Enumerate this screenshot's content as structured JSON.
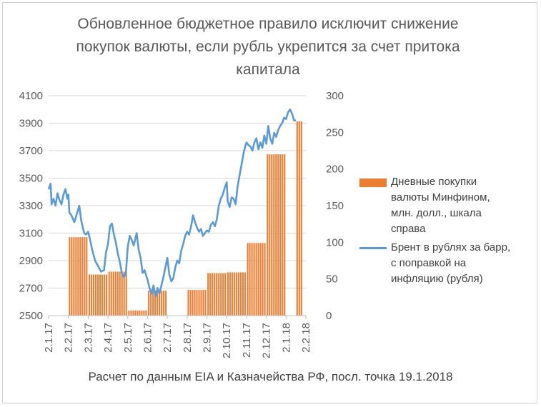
{
  "colors": {
    "bars": "#ED7D31",
    "line": "#5B9BD5",
    "text": "#595959",
    "grid": "#d9d9d9"
  },
  "chart_data": {
    "type": "bar",
    "title_lines": [
      "Обновленное бюджетное правило исключит снижение",
      "покупок валюты, если рубль укрепится за счет притока",
      "капитала"
    ],
    "footnote": "Расчет по данным EIA и Казначейства РФ, посл. точка 19.1.2018",
    "x_tick_labels": [
      "2.1.17",
      "2.2.17",
      "2.3.17",
      "2.4.17",
      "2.5.17",
      "2.6.17",
      "2.7.17",
      "2.8.17",
      "2.9.17",
      "2.10.17",
      "2.11.17",
      "2.12.17",
      "2.1.18",
      "2.2.18"
    ],
    "left_axis": {
      "ticks": [
        2500,
        2700,
        2900,
        3100,
        3300,
        3500,
        3700,
        3900,
        4100
      ],
      "ylim": [
        2500,
        4100
      ]
    },
    "right_axis": {
      "ticks": [
        0,
        50,
        100,
        150,
        200,
        250,
        300
      ],
      "ylim": [
        0,
        300
      ]
    },
    "legend_position": "right",
    "series": [
      {
        "name_lines": [
          "Дневные покупки",
          "валюты Минфином,",
          "млн. долл., шкала",
          "справа"
        ],
        "type": "bar",
        "axis": "right",
        "segments": [
          {
            "from_month": 0.0,
            "to_month": 1.0,
            "value": 0
          },
          {
            "from_month": 1.0,
            "to_month": 2.0,
            "value": 107
          },
          {
            "from_month": 2.0,
            "to_month": 3.0,
            "value": 56
          },
          {
            "from_month": 3.0,
            "to_month": 4.0,
            "value": 60
          },
          {
            "from_month": 4.0,
            "to_month": 5.0,
            "value": 7
          },
          {
            "from_month": 5.0,
            "to_month": 6.0,
            "value": 34
          },
          {
            "from_month": 6.0,
            "to_month": 7.0,
            "value": 0
          },
          {
            "from_month": 7.0,
            "to_month": 8.0,
            "value": 35
          },
          {
            "from_month": 8.0,
            "to_month": 9.0,
            "value": 58
          },
          {
            "from_month": 9.0,
            "to_month": 10.0,
            "value": 59
          },
          {
            "from_month": 10.0,
            "to_month": 11.0,
            "value": 99
          },
          {
            "from_month": 11.0,
            "to_month": 12.0,
            "value": 220
          },
          {
            "from_month": 12.0,
            "to_month": 12.5,
            "value": 0
          },
          {
            "from_month": 12.5,
            "to_month": 12.85,
            "value": 265
          }
        ]
      },
      {
        "name_lines": [
          "Брент в рублях за барр,",
          "с поправкой на",
          "инфляцию (рубля)"
        ],
        "type": "line",
        "axis": "left",
        "points": [
          [
            0.0,
            3420
          ],
          [
            0.1,
            3460
          ],
          [
            0.15,
            3310
          ],
          [
            0.25,
            3350
          ],
          [
            0.35,
            3300
          ],
          [
            0.45,
            3390
          ],
          [
            0.55,
            3340
          ],
          [
            0.65,
            3310
          ],
          [
            0.75,
            3380
          ],
          [
            0.85,
            3420
          ],
          [
            0.95,
            3350
          ],
          [
            1.0,
            3380
          ],
          [
            1.05,
            3250
          ],
          [
            1.15,
            3230
          ],
          [
            1.3,
            3180
          ],
          [
            1.45,
            3250
          ],
          [
            1.55,
            3300
          ],
          [
            1.65,
            3190
          ],
          [
            1.8,
            3100
          ],
          [
            1.9,
            3090
          ],
          [
            2.0,
            3110
          ],
          [
            2.1,
            3050
          ],
          [
            2.2,
            2980
          ],
          [
            2.35,
            2900
          ],
          [
            2.5,
            2860
          ],
          [
            2.65,
            2820
          ],
          [
            2.8,
            2830
          ],
          [
            2.9,
            2960
          ],
          [
            3.0,
            3020
          ],
          [
            3.1,
            3150
          ],
          [
            3.2,
            3170
          ],
          [
            3.3,
            3090
          ],
          [
            3.4,
            3030
          ],
          [
            3.5,
            2950
          ],
          [
            3.6,
            2890
          ],
          [
            3.7,
            2810
          ],
          [
            3.8,
            2780
          ],
          [
            3.9,
            2800
          ],
          [
            4.0,
            3000
          ],
          [
            4.1,
            3080
          ],
          [
            4.2,
            3050
          ],
          [
            4.3,
            3010
          ],
          [
            4.45,
            3100
          ],
          [
            4.55,
            2980
          ],
          [
            4.65,
            2920
          ],
          [
            4.75,
            2810
          ],
          [
            4.85,
            2830
          ],
          [
            5.0,
            2760
          ],
          [
            5.1,
            2700
          ],
          [
            5.2,
            2660
          ],
          [
            5.3,
            2720
          ],
          [
            5.4,
            2640
          ],
          [
            5.5,
            2700
          ],
          [
            5.6,
            2660
          ],
          [
            5.7,
            2720
          ],
          [
            5.8,
            2780
          ],
          [
            5.9,
            2850
          ],
          [
            6.0,
            2920
          ],
          [
            6.1,
            2800
          ],
          [
            6.2,
            2750
          ],
          [
            6.3,
            2770
          ],
          [
            6.4,
            2850
          ],
          [
            6.5,
            2900
          ],
          [
            6.6,
            2880
          ],
          [
            6.7,
            2970
          ],
          [
            6.8,
            3020
          ],
          [
            6.9,
            3080
          ],
          [
            7.0,
            3110
          ],
          [
            7.1,
            3090
          ],
          [
            7.2,
            3150
          ],
          [
            7.3,
            3230
          ],
          [
            7.4,
            3180
          ],
          [
            7.5,
            3140
          ],
          [
            7.6,
            3110
          ],
          [
            7.7,
            3130
          ],
          [
            7.8,
            3080
          ],
          [
            7.9,
            3100
          ],
          [
            8.0,
            3120
          ],
          [
            8.1,
            3110
          ],
          [
            8.2,
            3160
          ],
          [
            8.3,
            3180
          ],
          [
            8.4,
            3150
          ],
          [
            8.5,
            3200
          ],
          [
            8.6,
            3300
          ],
          [
            8.7,
            3350
          ],
          [
            8.8,
            3380
          ],
          [
            8.9,
            3430
          ],
          [
            9.0,
            3470
          ],
          [
            9.05,
            3330
          ],
          [
            9.15,
            3290
          ],
          [
            9.25,
            3360
          ],
          [
            9.35,
            3350
          ],
          [
            9.45,
            3310
          ],
          [
            9.55,
            3440
          ],
          [
            9.65,
            3520
          ],
          [
            9.75,
            3600
          ],
          [
            9.85,
            3680
          ],
          [
            9.95,
            3740
          ],
          [
            10.0,
            3760
          ],
          [
            10.1,
            3740
          ],
          [
            10.2,
            3730
          ],
          [
            10.3,
            3700
          ],
          [
            10.4,
            3760
          ],
          [
            10.5,
            3790
          ],
          [
            10.6,
            3710
          ],
          [
            10.7,
            3760
          ],
          [
            10.8,
            3720
          ],
          [
            10.9,
            3810
          ],
          [
            11.0,
            3750
          ],
          [
            11.1,
            3880
          ],
          [
            11.2,
            3790
          ],
          [
            11.3,
            3750
          ],
          [
            11.4,
            3830
          ],
          [
            11.5,
            3800
          ],
          [
            11.6,
            3850
          ],
          [
            11.7,
            3880
          ],
          [
            11.8,
            3900
          ],
          [
            11.9,
            3940
          ],
          [
            12.0,
            3930
          ],
          [
            12.1,
            3980
          ],
          [
            12.2,
            4000
          ],
          [
            12.3,
            3970
          ],
          [
            12.4,
            3920
          ],
          [
            12.5,
            3920
          ]
        ]
      }
    ]
  }
}
